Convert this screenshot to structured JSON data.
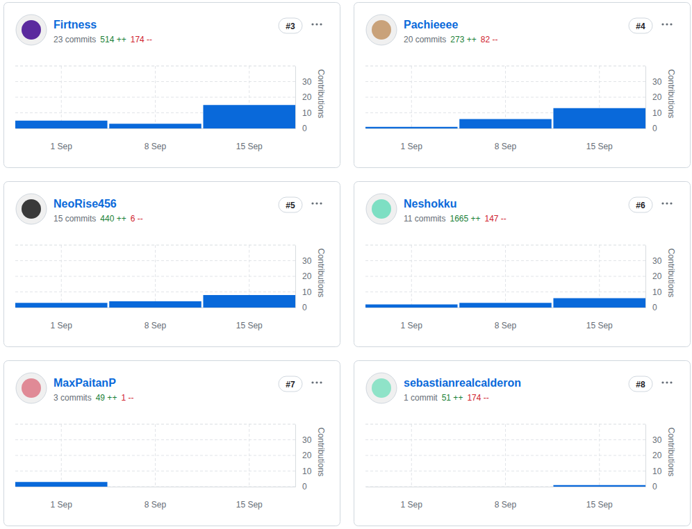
{
  "chart_data": [
    {
      "type": "bar",
      "title": "Firtness",
      "rank": "#3",
      "commits": "23 commits",
      "additions": "514 ++",
      "deletions": "174 --",
      "y_label": "Contributions",
      "categories": [
        "1 Sep",
        "8 Sep",
        "15 Sep"
      ],
      "values": [
        5,
        3,
        15
      ],
      "color": "#0969da",
      "ylim": [
        0,
        40
      ],
      "yticks": [
        0,
        10,
        20,
        30
      ],
      "grid": true
    },
    {
      "type": "bar",
      "title": "Pachieeee",
      "rank": "#4",
      "commits": "20 commits",
      "additions": "273 ++",
      "deletions": "82 --",
      "y_label": "Contributions",
      "categories": [
        "1 Sep",
        "8 Sep",
        "15 Sep"
      ],
      "values": [
        1,
        6,
        13
      ],
      "color": "#0969da",
      "ylim": [
        0,
        40
      ],
      "yticks": [
        0,
        10,
        20,
        30
      ],
      "grid": true
    },
    {
      "type": "bar",
      "title": "NeoRise456",
      "rank": "#5",
      "commits": "15 commits",
      "additions": "440 ++",
      "deletions": "6 --",
      "y_label": "Contributions",
      "categories": [
        "1 Sep",
        "8 Sep",
        "15 Sep"
      ],
      "values": [
        3,
        4,
        8
      ],
      "color": "#0969da",
      "ylim": [
        0,
        40
      ],
      "yticks": [
        0,
        10,
        20,
        30
      ],
      "grid": true
    },
    {
      "type": "bar",
      "title": "Neshokku",
      "rank": "#6",
      "commits": "11 commits",
      "additions": "1665 ++",
      "deletions": "147 --",
      "y_label": "Contributions",
      "categories": [
        "1 Sep",
        "8 Sep",
        "15 Sep"
      ],
      "values": [
        2,
        3,
        6
      ],
      "color": "#0969da",
      "ylim": [
        0,
        40
      ],
      "yticks": [
        0,
        10,
        20,
        30
      ],
      "grid": true
    },
    {
      "type": "bar",
      "title": "MaxPaitanP",
      "rank": "#7",
      "commits": "3 commits",
      "additions": "49 ++",
      "deletions": "1 --",
      "y_label": "Contributions",
      "categories": [
        "1 Sep",
        "8 Sep",
        "15 Sep"
      ],
      "values": [
        3,
        0,
        0
      ],
      "color": "#0969da",
      "ylim": [
        0,
        40
      ],
      "yticks": [
        0,
        10,
        20,
        30
      ],
      "grid": true
    },
    {
      "type": "bar",
      "title": "sebastianrealcalderon",
      "rank": "#8",
      "commits": "1 commit",
      "additions": "51 ++",
      "deletions": "174 --",
      "y_label": "Contributions",
      "categories": [
        "1 Sep",
        "8 Sep",
        "15 Sep"
      ],
      "values": [
        0,
        0,
        1
      ],
      "color": "#0969da",
      "ylim": [
        0,
        40
      ],
      "yticks": [
        0,
        10,
        20,
        30
      ],
      "grid": true
    }
  ]
}
